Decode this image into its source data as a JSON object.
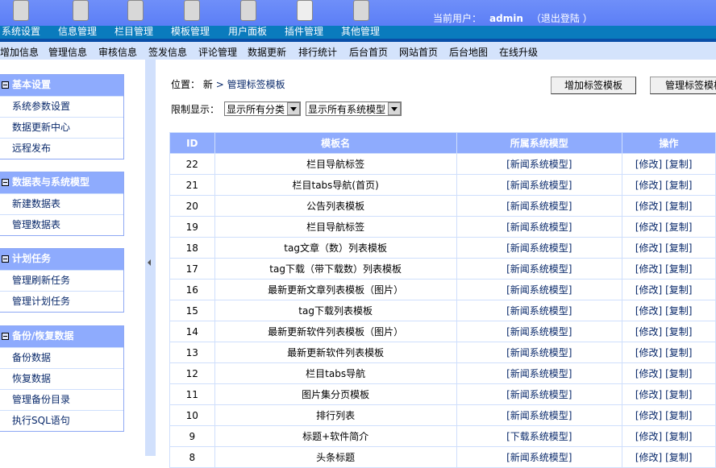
{
  "header": {
    "current_user_label": "当前用户：",
    "username": "admin",
    "logout": "（退出登陆 ）",
    "icons": [
      "wrench-icon",
      "documents-icon",
      "database-icon",
      "template-icon",
      "users-icon",
      "lifebuoy-icon",
      "plugin-icon"
    ]
  },
  "nav": [
    "系统设置",
    "信息管理",
    "栏目管理",
    "模板管理",
    "用户面板",
    "插件管理",
    "其他管理"
  ],
  "subnav": [
    "增加信息",
    "管理信息",
    "审核信息",
    "签发信息",
    "评论管理",
    "数据更新",
    "排行统计",
    "后台首页",
    "网站首页",
    "后台地图",
    "在线升级"
  ],
  "sidebar": [
    {
      "title": "基本设置",
      "items": [
        "系统参数设置",
        "数据更新中心",
        "远程发布"
      ]
    },
    {
      "title": "数据表与系统模型",
      "items": [
        "新建数据表",
        "管理数据表"
      ]
    },
    {
      "title": "计划任务",
      "items": [
        "管理刷新任务",
        "管理计划任务"
      ]
    },
    {
      "title": "备份/恢复数据",
      "items": [
        "备份数据",
        "恢复数据",
        "管理备份目录",
        "执行SQL语句"
      ]
    }
  ],
  "main": {
    "location_label": "位置：",
    "location_root": "新",
    "location_sep": ">",
    "location_page": "管理标签模板",
    "add_button": "增加标签模板",
    "manage_button": "管理标签模板",
    "filter_label": "限制显示：",
    "filter_category": "显示所有分类",
    "filter_model": "显示所有系统模型",
    "columns": [
      "ID",
      "模板名",
      "所属系统模型",
      "操作"
    ],
    "ops": [
      "[修改]",
      "[复制]"
    ],
    "rows": [
      {
        "id": "22",
        "name": "栏目导航标签",
        "model": "[新闻系统模型]"
      },
      {
        "id": "21",
        "name": "栏目tabs导航(首页)",
        "model": "[新闻系统模型]"
      },
      {
        "id": "20",
        "name": "公告列表模板",
        "model": "[新闻系统模型]"
      },
      {
        "id": "19",
        "name": "栏目导航标签",
        "model": "[新闻系统模型]"
      },
      {
        "id": "18",
        "name": "tag文章（数）列表模板",
        "model": "[新闻系统模型]"
      },
      {
        "id": "17",
        "name": "tag下载（带下载数）列表模板",
        "model": "[新闻系统模型]"
      },
      {
        "id": "16",
        "name": "最新更新文章列表模板（图片）",
        "model": "[新闻系统模型]"
      },
      {
        "id": "15",
        "name": "tag下载列表模板",
        "model": "[新闻系统模型]"
      },
      {
        "id": "14",
        "name": "最新更新软件列表模板（图片）",
        "model": "[新闻系统模型]"
      },
      {
        "id": "13",
        "name": "最新更新软件列表模板",
        "model": "[新闻系统模型]"
      },
      {
        "id": "12",
        "name": "栏目tabs导航",
        "model": "[新闻系统模型]"
      },
      {
        "id": "11",
        "name": "图片集分页模板",
        "model": "[新闻系统模型]"
      },
      {
        "id": "10",
        "name": "排行列表",
        "model": "[新闻系统模型]"
      },
      {
        "id": "9",
        "name": "标题+软件简介",
        "model": "[下载系统模型]"
      },
      {
        "id": "8",
        "name": "头条标题",
        "model": "[新闻系统模型]"
      }
    ]
  },
  "colors": {
    "header": "#6f8ff9",
    "nav": "#0a7bbd",
    "subnav": "#d4e3fc",
    "table_header": "#8eabfd",
    "link": "#0a2a6b"
  }
}
